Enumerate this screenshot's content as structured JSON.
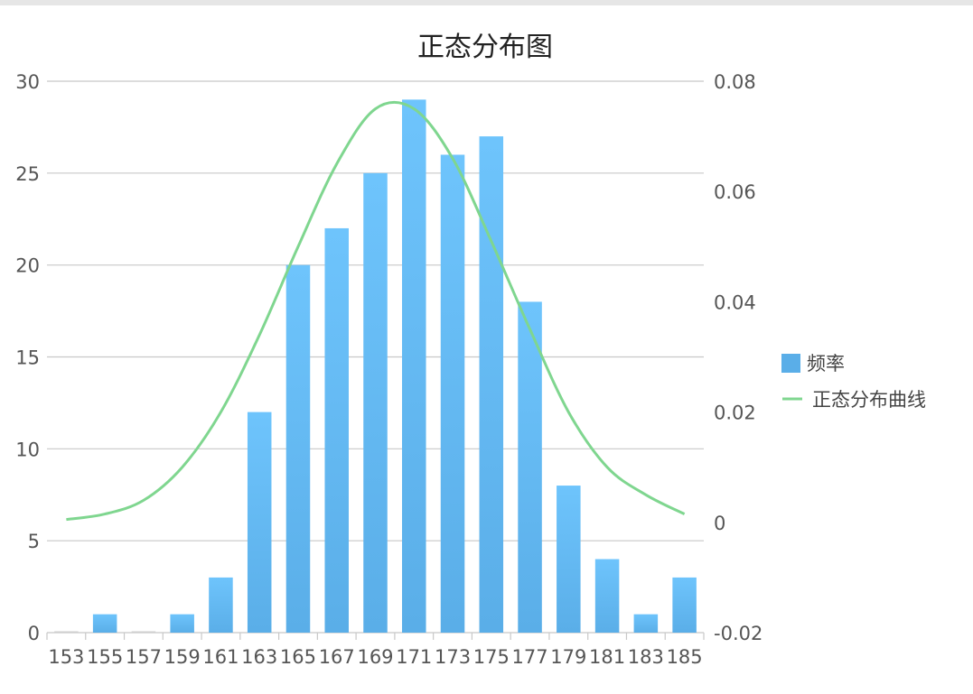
{
  "chart_data": {
    "type": "bar",
    "title": "正态分布图",
    "categories": [
      "153",
      "155",
      "157",
      "159",
      "161",
      "163",
      "165",
      "167",
      "169",
      "171",
      "173",
      "175",
      "177",
      "179",
      "181",
      "183",
      "185"
    ],
    "series": [
      {
        "name": "频率",
        "type": "bar",
        "axis": "left",
        "values": [
          0,
          1,
          0,
          1,
          3,
          12,
          20,
          22,
          25,
          29,
          26,
          27,
          18,
          8,
          4,
          1,
          3
        ]
      },
      {
        "name": "正态分布曲线",
        "type": "line",
        "axis": "right",
        "values": [
          0.0005,
          0.0015,
          0.004,
          0.01,
          0.02,
          0.034,
          0.05,
          0.065,
          0.075,
          0.075,
          0.066,
          0.051,
          0.035,
          0.02,
          0.01,
          0.005,
          0.0015
        ]
      }
    ],
    "y_left": {
      "ylim": [
        0,
        30
      ],
      "ticks": [
        "0",
        "5",
        "10",
        "15",
        "20",
        "25",
        "30"
      ]
    },
    "y_right": {
      "ylim": [
        -0.02,
        0.08
      ],
      "ticks": [
        "-0.02",
        "0",
        "0.02",
        "0.04",
        "0.06",
        "0.08"
      ]
    },
    "grid": true,
    "legend_position": "right",
    "colors": {
      "bar_top": "#6ec4fc",
      "bar_bottom": "#5aaee8",
      "line": "#7fd68f",
      "grid": "#c8c8c8",
      "axis_text": "#555555"
    }
  }
}
